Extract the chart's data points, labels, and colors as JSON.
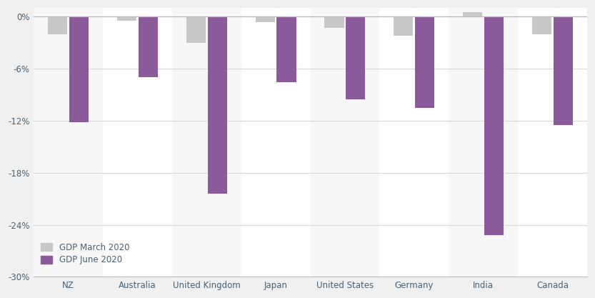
{
  "categories": [
    "NZ",
    "Australia",
    "United Kingdom",
    "Japan",
    "United States",
    "Germany",
    "India",
    "Canada"
  ],
  "march_2020": [
    -2.0,
    -0.5,
    -3.0,
    -0.6,
    -1.3,
    -2.2,
    0.5,
    -2.0
  ],
  "june_2020": [
    -12.2,
    -7.0,
    -20.4,
    -7.6,
    -9.5,
    -10.5,
    -25.2,
    -12.5
  ],
  "color_march": "#c8c8c8",
  "color_june": "#8b5a9a",
  "background_color": "#f0f0f0",
  "col_even_color": "#f7f7f7",
  "col_odd_color": "#ffffff",
  "legend_march": "GDP March 2020",
  "legend_june": "GDP June 2020",
  "ylim": [
    -30,
    1.0
  ],
  "yticks": [
    0,
    -6,
    -12,
    -18,
    -24,
    -30
  ],
  "ytick_labels": [
    "0%",
    "-6%",
    "-12%",
    "-18%",
    "-24%",
    "-30%"
  ],
  "bar_width": 0.28,
  "font_color": "#4a6070",
  "grid_color": "#d8d8d8",
  "spine_color": "#bbbbbb"
}
